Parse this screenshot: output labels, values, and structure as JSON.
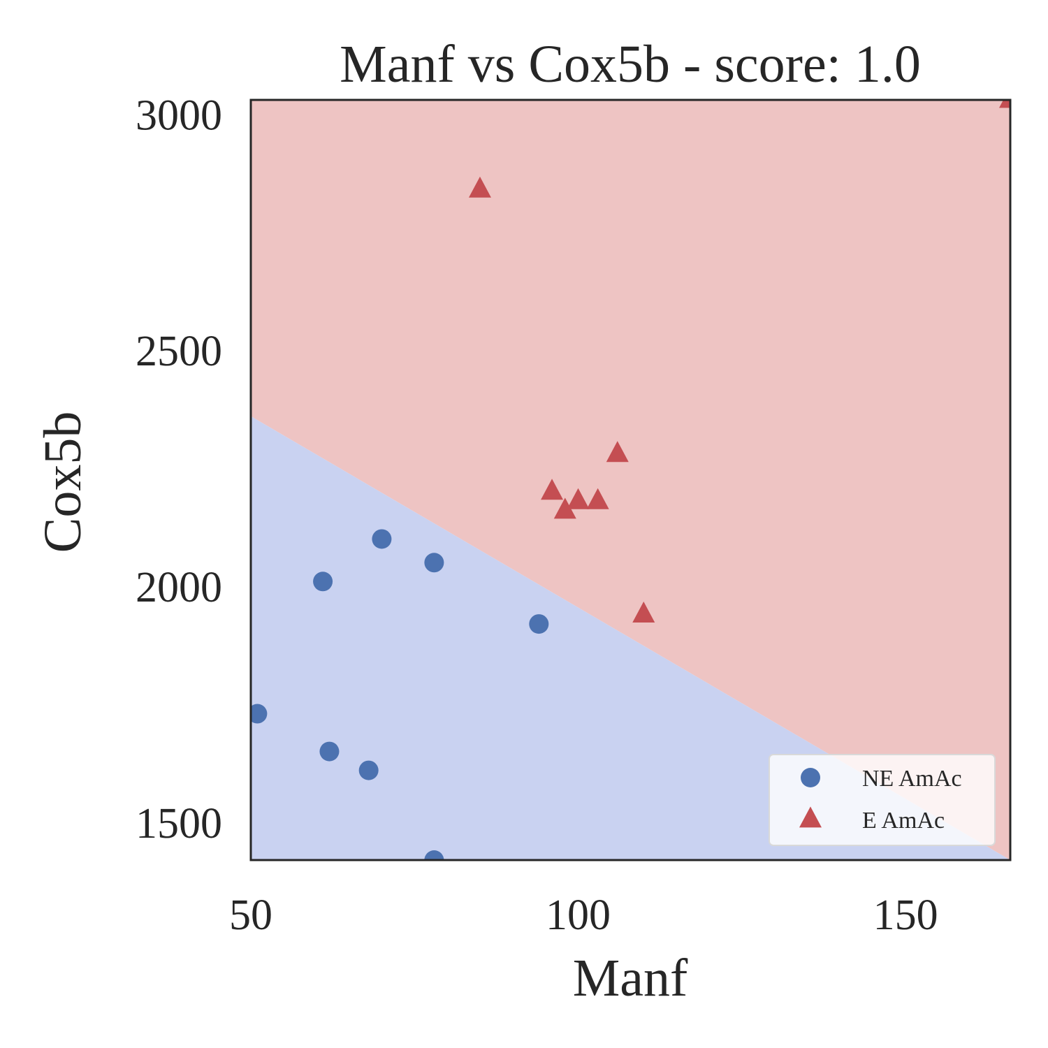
{
  "chart_data": {
    "type": "scatter",
    "title": "Manf vs Cox5b - score: 1.0",
    "xlabel": "Manf",
    "ylabel": "Cox5b",
    "xlim": [
      50,
      166
    ],
    "ylim": [
      1420,
      3030
    ],
    "xticks": [
      50,
      100,
      150
    ],
    "yticks": [
      1500,
      2000,
      2500,
      3000
    ],
    "grid": false,
    "legend_position": "lower right",
    "decision_boundary": {
      "points": [
        [
          50,
          2360
        ],
        [
          166,
          1420
        ]
      ],
      "region_above": "E AmAc",
      "region_below": "NE AmAc"
    },
    "series": [
      {
        "name": "NE AmAc",
        "marker": "circle",
        "color": "#4c72b0",
        "points": [
          [
            51,
            1730
          ],
          [
            61,
            2010
          ],
          [
            62,
            1650
          ],
          [
            68,
            1610
          ],
          [
            70,
            2100
          ],
          [
            78,
            2050
          ],
          [
            78,
            1420
          ],
          [
            94,
            1920
          ]
        ]
      },
      {
        "name": "E AmAc",
        "marker": "triangle",
        "color": "#c44e52",
        "points": [
          [
            85,
            2840
          ],
          [
            96,
            2200
          ],
          [
            98,
            2160
          ],
          [
            100,
            2180
          ],
          [
            103,
            2180
          ],
          [
            106,
            2280
          ],
          [
            110,
            1940
          ],
          [
            166,
            3030
          ]
        ]
      }
    ],
    "region_colors": {
      "NE AmAc": "#c9d2f1",
      "E AmAc": "#eec4c3"
    }
  }
}
